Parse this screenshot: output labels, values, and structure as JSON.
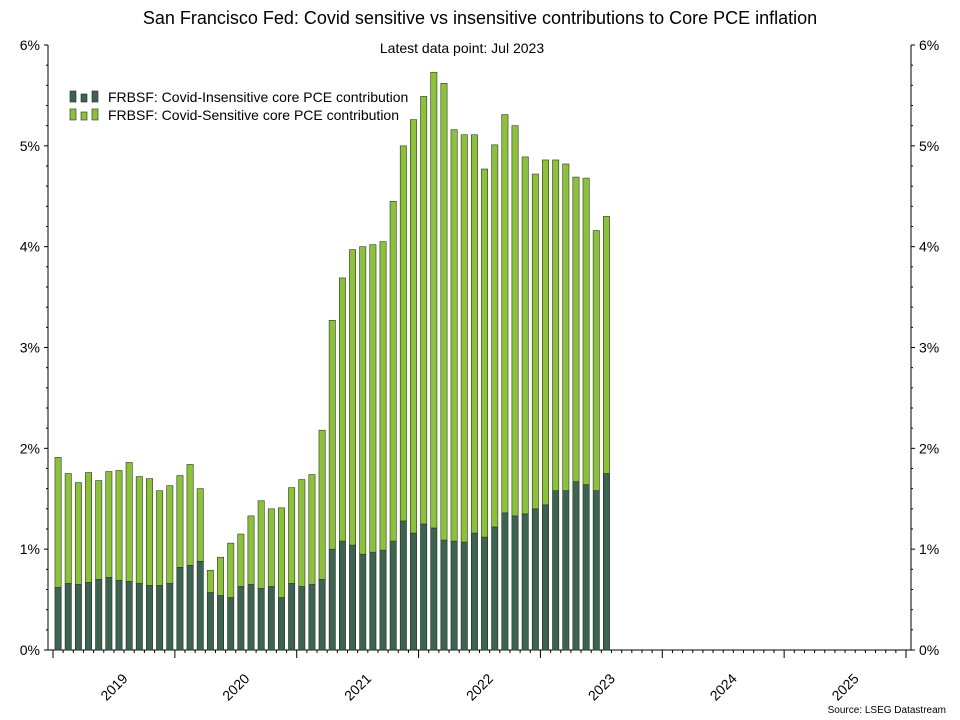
{
  "chart_data": {
    "type": "bar",
    "stacked": true,
    "title": "San Francisco Fed: Covid sensitive vs insensitive contributions to Core PCE inflation",
    "subtitle": "Latest data point: Jul 2023",
    "source": "Source: LSEG Datastream",
    "y_left_ticks": [
      "0%",
      "1%",
      "2%",
      "3%",
      "4%",
      "5%",
      "6%"
    ],
    "y_right_ticks": [
      "0%",
      "1%",
      "2%",
      "3%",
      "4%",
      "5%",
      "6%"
    ],
    "ylim": [
      0,
      6
    ],
    "x_labels": [
      "2019",
      "2020",
      "2021",
      "2022",
      "2023",
      "2024",
      "2025"
    ],
    "x_range": [
      "Jan 2019",
      "Dec 2025"
    ],
    "grid": false,
    "legend_position": "top-left",
    "series": [
      {
        "name": "FRBSF: Covid-Insensitive core PCE contribution",
        "color": "#3c6450",
        "values": [
          0.62,
          0.66,
          0.65,
          0.67,
          0.7,
          0.72,
          0.69,
          0.68,
          0.66,
          0.64,
          0.64,
          0.66,
          0.82,
          0.84,
          0.88,
          0.57,
          0.54,
          0.52,
          0.63,
          0.65,
          0.61,
          0.63,
          0.52,
          0.66,
          0.63,
          0.65,
          0.7,
          1.0,
          1.08,
          1.04,
          0.95,
          0.97,
          0.99,
          1.08,
          1.28,
          1.16,
          1.25,
          1.21,
          1.09,
          1.08,
          1.07,
          1.16,
          1.12,
          1.22,
          1.36,
          1.33,
          1.35,
          1.4,
          1.44,
          1.58,
          1.58,
          1.67,
          1.64,
          1.58,
          1.75
        ]
      },
      {
        "name": "FRBSF: Covid-Sensitive core PCE contribution",
        "color": "#8dc03c",
        "values": [
          1.29,
          1.09,
          1.01,
          1.09,
          0.98,
          1.05,
          1.09,
          1.18,
          1.06,
          1.06,
          0.94,
          0.97,
          0.91,
          1.0,
          0.72,
          0.22,
          0.38,
          0.54,
          0.52,
          0.68,
          0.87,
          0.77,
          0.89,
          0.95,
          1.06,
          1.09,
          1.48,
          2.27,
          2.61,
          2.93,
          3.05,
          3.05,
          3.06,
          3.37,
          3.72,
          4.1,
          4.24,
          4.52,
          4.53,
          4.08,
          4.04,
          3.95,
          3.65,
          3.79,
          3.95,
          3.87,
          3.54,
          3.32,
          3.42,
          3.28,
          3.24,
          3.02,
          3.04,
          2.58,
          2.55
        ]
      }
    ]
  }
}
